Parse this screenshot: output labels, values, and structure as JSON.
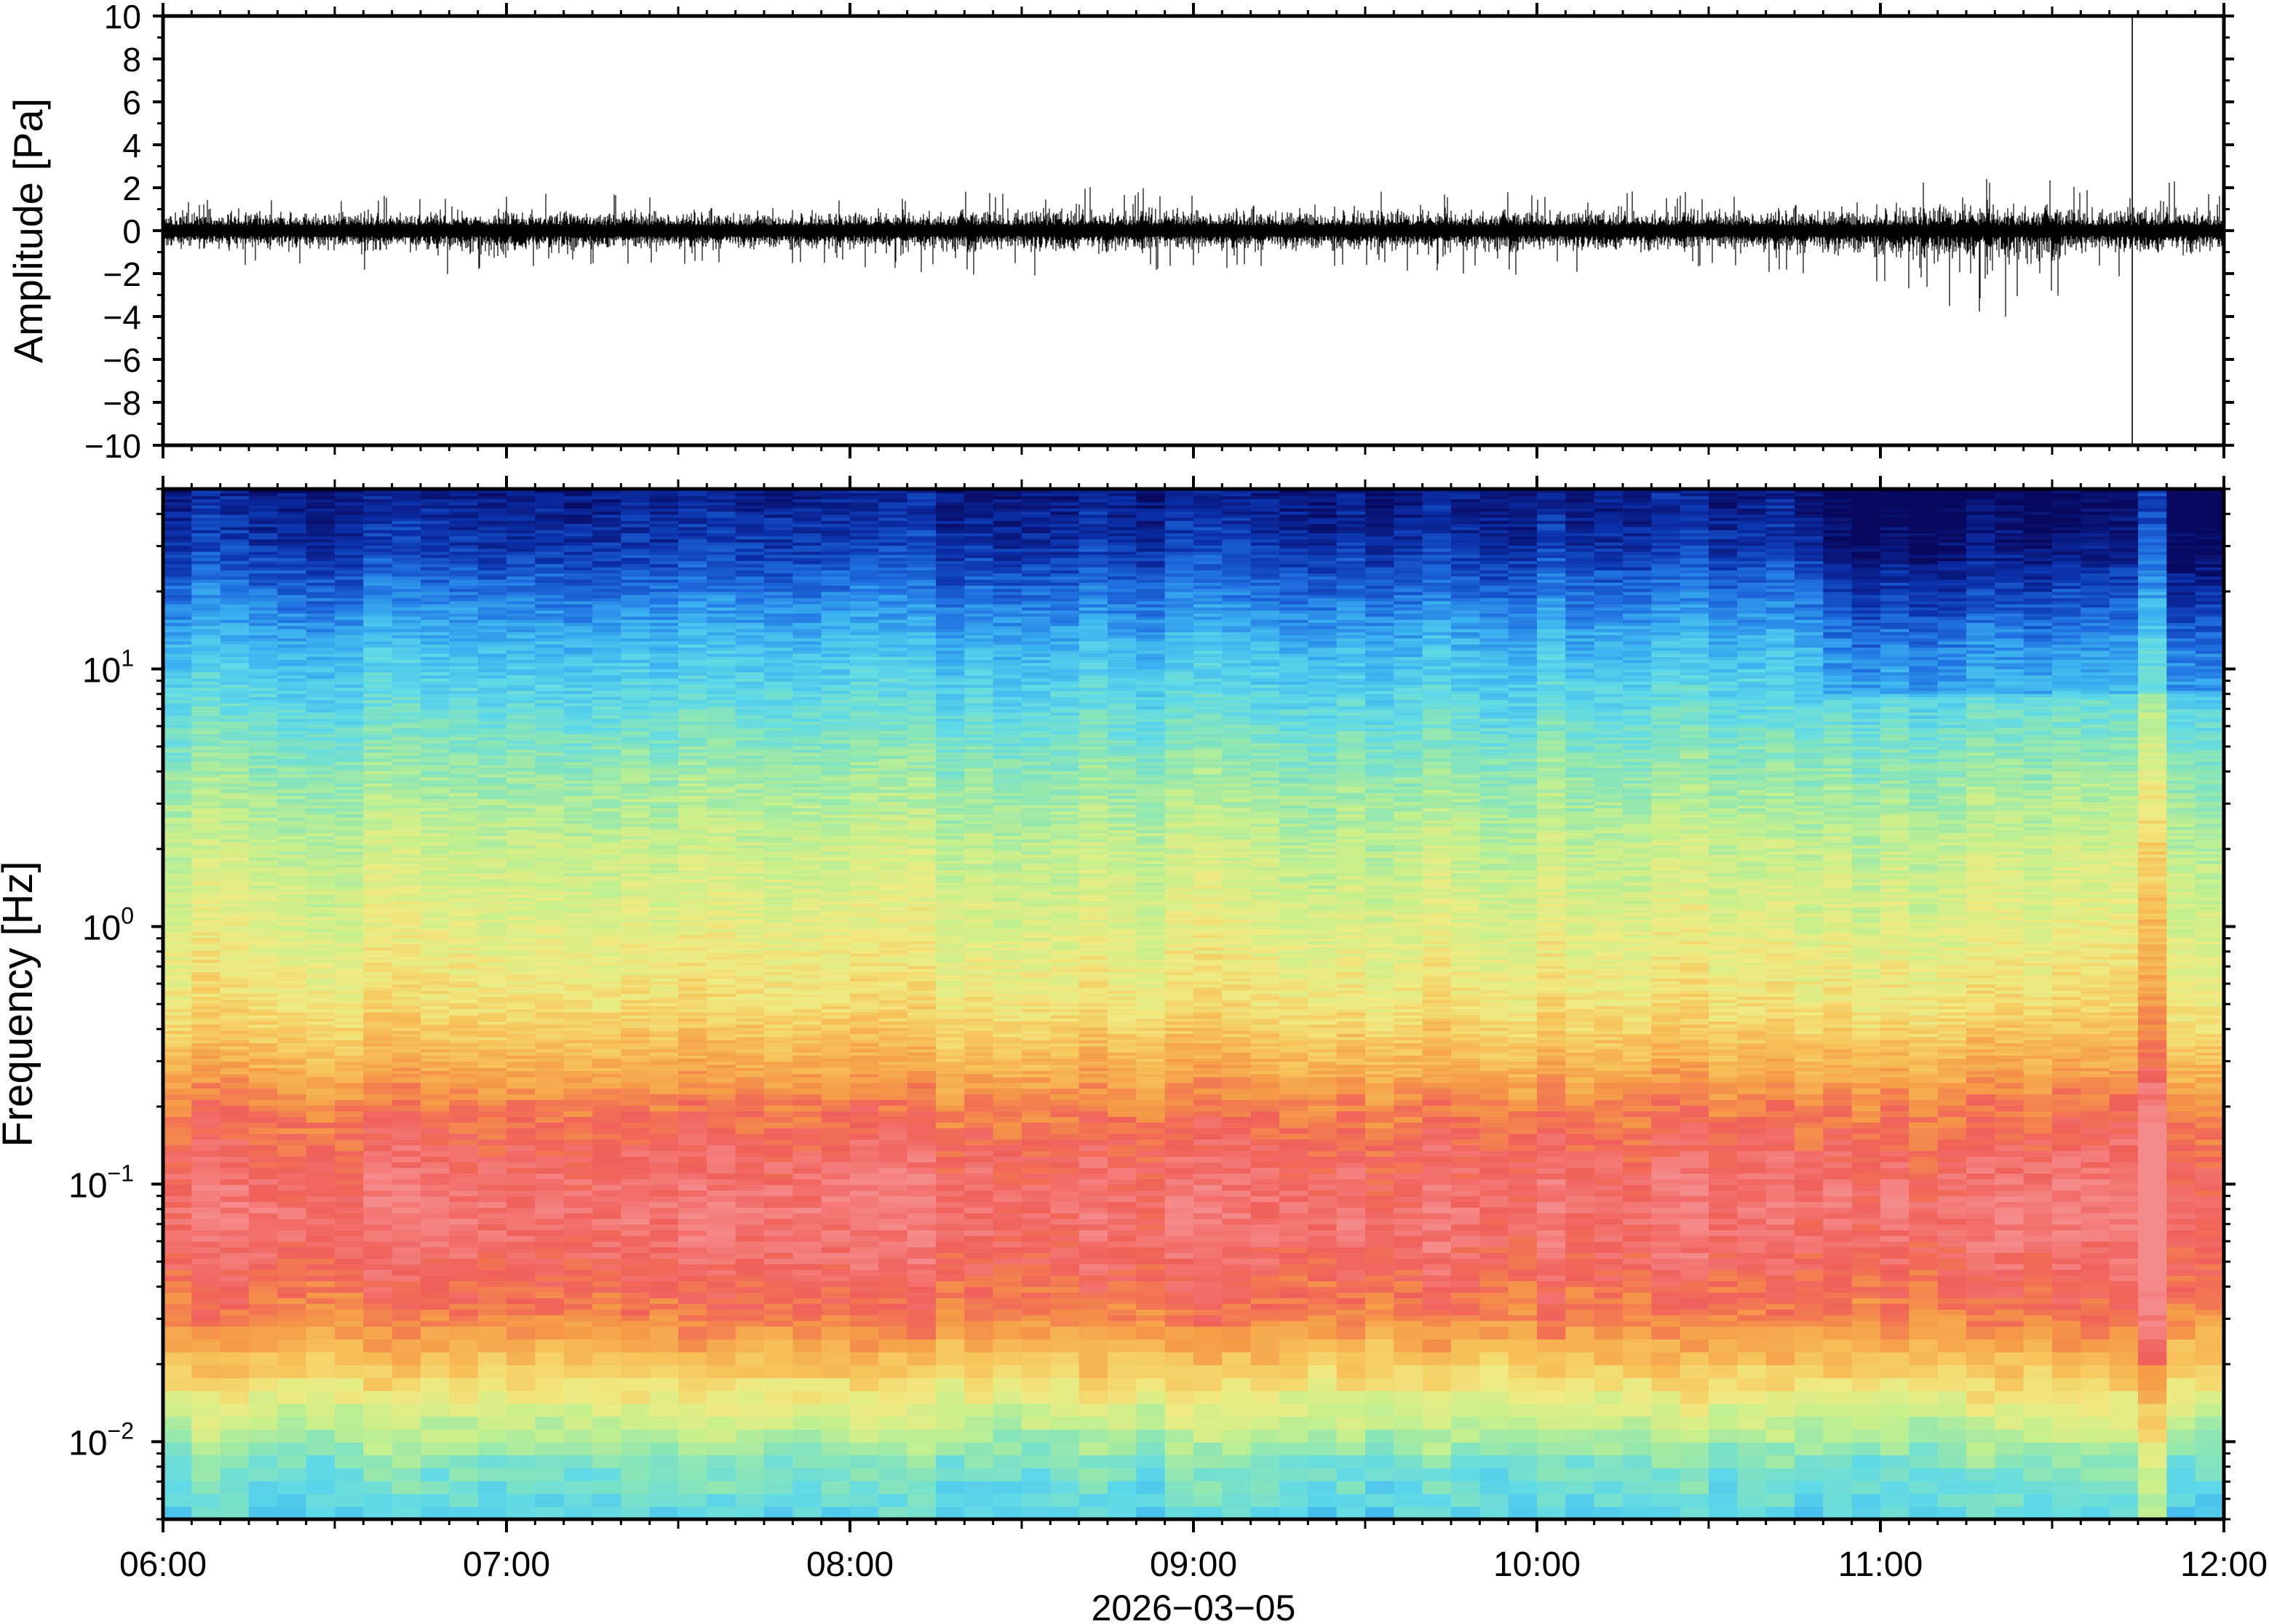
{
  "chart_data": [
    {
      "type": "line",
      "ylabel": "Amplitude [Pa]",
      "ylim": [
        -10,
        10
      ],
      "y_ticks": [
        10,
        8,
        6,
        4,
        2,
        0,
        -2,
        -4,
        -6,
        -8,
        -10
      ],
      "y_tick_labels": [
        "10",
        "8",
        "6",
        "4",
        "2",
        "0",
        "−2",
        "−4",
        "−6",
        "−8",
        "−10"
      ],
      "xlim": [
        "2026-03-05T06:00",
        "2026-03-05T12:00"
      ],
      "series": [
        {
          "description_of_values": "waveform envelope: x = time of day, ymin/ymax = minimum and maximum amplitude in Pa",
          "points": [
            {
              "x": "06:00",
              "ymin": -1.3,
              "ymax": 1.3
            },
            {
              "x": "06:30",
              "ymin": -1.5,
              "ymax": 1.4
            },
            {
              "x": "07:00",
              "ymin": -1.9,
              "ymax": 1.6
            },
            {
              "x": "07:30",
              "ymin": -1.4,
              "ymax": 1.5
            },
            {
              "x": "08:00",
              "ymin": -1.4,
              "ymax": 1.3
            },
            {
              "x": "08:30",
              "ymin": -1.9,
              "ymax": 1.8
            },
            {
              "x": "09:00",
              "ymin": -1.6,
              "ymax": 1.6
            },
            {
              "x": "09:30",
              "ymin": -1.5,
              "ymax": 1.7
            },
            {
              "x": "10:00",
              "ymin": -1.8,
              "ymax": 1.6
            },
            {
              "x": "10:30",
              "ymin": -1.5,
              "ymax": 1.5
            },
            {
              "x": "11:00",
              "ymin": -2.2,
              "ymax": 1.9
            },
            {
              "x": "11:20",
              "ymin": -3.5,
              "ymax": 2.4
            },
            {
              "x": "11:40",
              "ymin": -1.9,
              "ymax": 1.8
            },
            {
              "x": "11:44",
              "ymin": -10,
              "ymax": 10
            },
            {
              "x": "11:50",
              "ymin": -2.0,
              "ymax": 2.0
            },
            {
              "x": "12:00",
              "ymin": -1.7,
              "ymax": 1.6
            }
          ]
        }
      ]
    },
    {
      "type": "heatmap",
      "ylabel": "Frequency [Hz]",
      "y_scale": "log",
      "ylim": [
        0.005,
        50
      ],
      "y_ticks": [
        0.01,
        0.1,
        1,
        10
      ],
      "y_tick_labels": [
        {
          "base": "10",
          "exp": "−2"
        },
        {
          "base": "10",
          "exp": "−1"
        },
        {
          "base": "10",
          "exp": "0"
        },
        {
          "base": "10",
          "exp": "1"
        }
      ],
      "xlim": [
        "06:00",
        "12:00"
      ],
      "x_ticks": [
        "06:00",
        "07:00",
        "08:00",
        "09:00",
        "10:00",
        "11:00",
        "12:00"
      ],
      "x_tick_labels": [
        "06:00",
        "07:00",
        "08:00",
        "09:00",
        "10:00",
        "11:00",
        "12:00"
      ],
      "xlabel": "2026−03−05",
      "colormap": [
        "#08085e",
        "#0b2fa8",
        "#1f6ee0",
        "#3bb0f0",
        "#5fd9e8",
        "#8de6b4",
        "#c8f08c",
        "#f0ea82",
        "#f7c35a",
        "#f59a48",
        "#f0605a",
        "#f58a8a"
      ],
      "frequency_profile": [
        {
          "f": 0.005,
          "level": 0.36
        },
        {
          "f": 0.008,
          "level": 0.42
        },
        {
          "f": 0.012,
          "level": 0.55
        },
        {
          "f": 0.02,
          "level": 0.72
        },
        {
          "f": 0.03,
          "level": 0.85
        },
        {
          "f": 0.05,
          "level": 0.93
        },
        {
          "f": 0.08,
          "level": 0.96
        },
        {
          "f": 0.12,
          "level": 0.93
        },
        {
          "f": 0.2,
          "level": 0.86
        },
        {
          "f": 0.3,
          "level": 0.76
        },
        {
          "f": 0.5,
          "level": 0.66
        },
        {
          "f": 1,
          "level": 0.6
        },
        {
          "f": 2,
          "level": 0.55
        },
        {
          "f": 4,
          "level": 0.47
        },
        {
          "f": 7,
          "level": 0.38
        },
        {
          "f": 12,
          "level": 0.3
        },
        {
          "f": 20,
          "level": 0.19
        },
        {
          "f": 30,
          "level": 0.1
        },
        {
          "f": 50,
          "level": 0.05
        }
      ],
      "events": [
        {
          "start": "10:48",
          "end": "12:00",
          "f_min": 8,
          "level_change": -0.08
        },
        {
          "start": "11:44",
          "end": "11:49",
          "f_min": 0.005,
          "level_change": 0.14
        },
        {
          "start": "11:49",
          "end": "11:52",
          "f_min": 4,
          "level_change": 0.05
        }
      ]
    }
  ]
}
